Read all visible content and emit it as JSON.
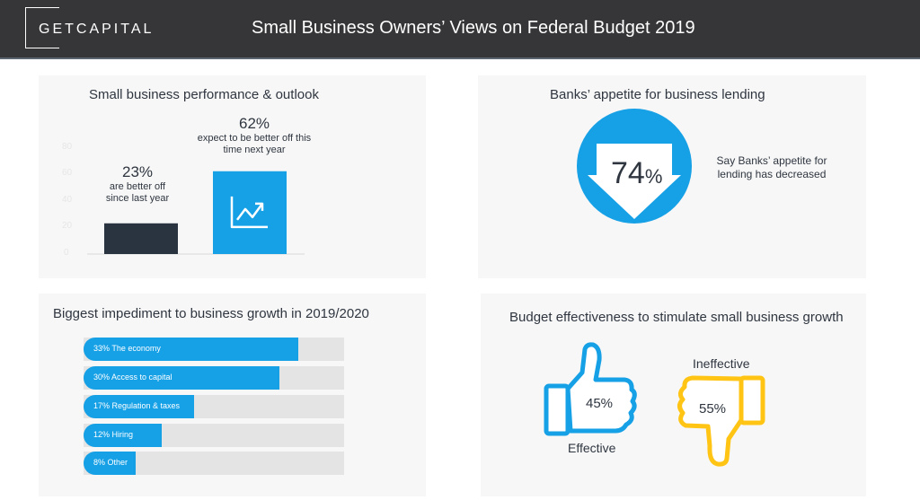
{
  "header": {
    "logo": "GETCAPITAL",
    "title": "Small Business Owners’ Views on Federal Budget 2019"
  },
  "colors": {
    "header_bg": "#363638",
    "accent_blue": "#16a0e6",
    "dark_bar": "#2a3440",
    "yellow": "#ffc414",
    "track": "#e4e4e4"
  },
  "performance": {
    "title": "Small business performance & outlook",
    "y_ticks": [
      "0",
      "20",
      "40",
      "60",
      "80"
    ],
    "bars": [
      {
        "value_label": "23%",
        "desc": "are better off since last year"
      },
      {
        "value_label": "62%",
        "desc": "expect to be better off this time next year"
      }
    ]
  },
  "banks": {
    "title": "Banks’ appetite for business lending",
    "value_main": "74",
    "value_suffix": "%",
    "desc": "Say Banks’ appetite for lending has decreased"
  },
  "impediments": {
    "title": "Biggest impediment to business growth in 2019/2020",
    "items": [
      {
        "label": "33% The economy"
      },
      {
        "label": "30% Access to capital"
      },
      {
        "label": "17% Regulation & taxes"
      },
      {
        "label": "12% Hiring"
      },
      {
        "label": "8% Other"
      }
    ]
  },
  "effectiveness": {
    "title": "Budget effectiveness to stimulate small business growth",
    "effective_value": "45%",
    "effective_label": "Effective",
    "ineffective_value": "55%",
    "ineffective_label": "Ineffective"
  },
  "chart_data": [
    {
      "type": "bar",
      "title": "Small business performance & outlook",
      "categories": [
        "are better off since last year",
        "expect to be better off this time next year"
      ],
      "values": [
        23,
        62
      ],
      "ylim": [
        0,
        80
      ],
      "yticks": [
        0,
        20,
        40,
        60,
        80
      ],
      "xlabel": "",
      "ylabel": ""
    },
    {
      "type": "pie",
      "title": "Banks’ appetite for business lending",
      "categories": [
        "Say Banks’ appetite for lending has decreased"
      ],
      "values": [
        74
      ]
    },
    {
      "type": "bar",
      "title": "Biggest impediment to business growth in 2019/2020",
      "orientation": "horizontal",
      "categories": [
        "The economy",
        "Access to capital",
        "Regulation & taxes",
        "Hiring",
        "Other"
      ],
      "values": [
        33,
        30,
        17,
        12,
        8
      ],
      "scale_max": 40
    },
    {
      "type": "bar",
      "title": "Budget effectiveness to stimulate small business growth",
      "categories": [
        "Effective",
        "Ineffective"
      ],
      "values": [
        45,
        55
      ]
    }
  ]
}
